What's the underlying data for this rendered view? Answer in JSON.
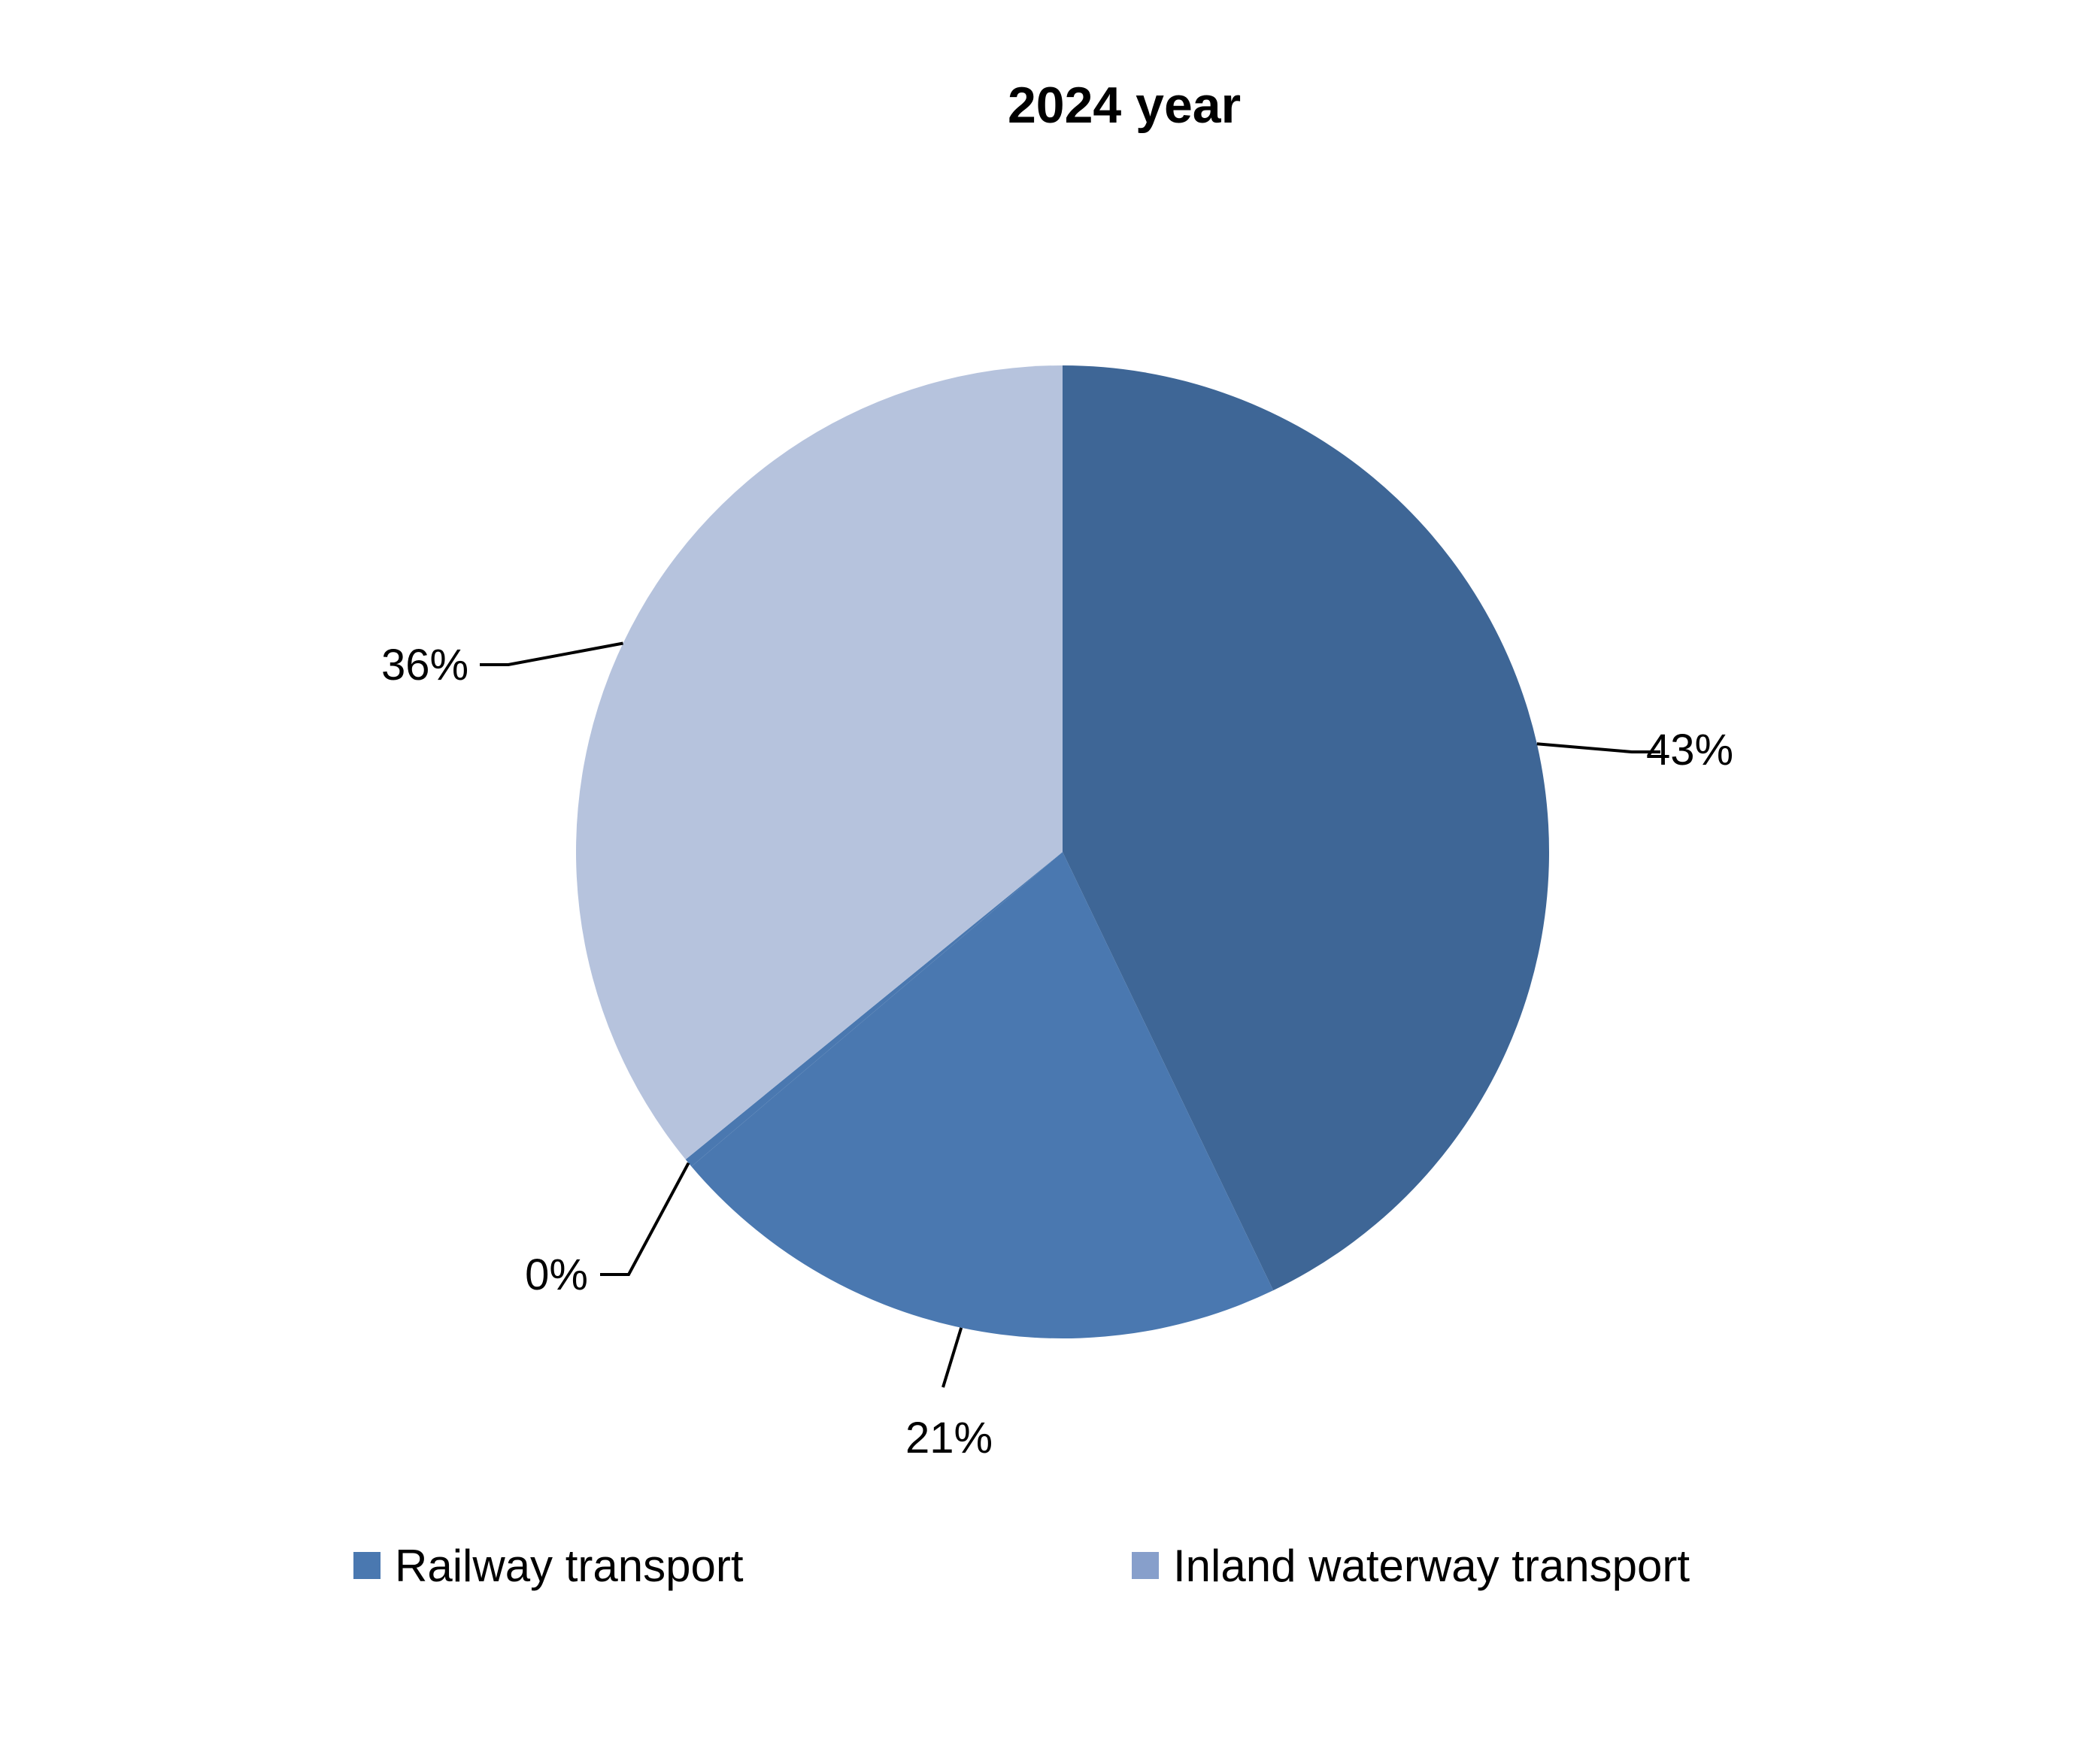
{
  "chart_data": {
    "type": "pie",
    "title": "2024 year",
    "slices": [
      {
        "label": "43%",
        "value": 43,
        "color": "#3e6696"
      },
      {
        "label": "21%",
        "value": 21,
        "color": "#4a78b0"
      },
      {
        "label": "0%",
        "value": 0.3,
        "color": "#4a78b0"
      },
      {
        "label": "36%",
        "value": 36,
        "color": "#b6c3dd"
      }
    ],
    "legend": [
      {
        "label": "Railway transport",
        "color": "#4a78b0"
      },
      {
        "label": "Inland waterway transport",
        "color": "#879fcb"
      }
    ],
    "legend_position": "bottom"
  }
}
